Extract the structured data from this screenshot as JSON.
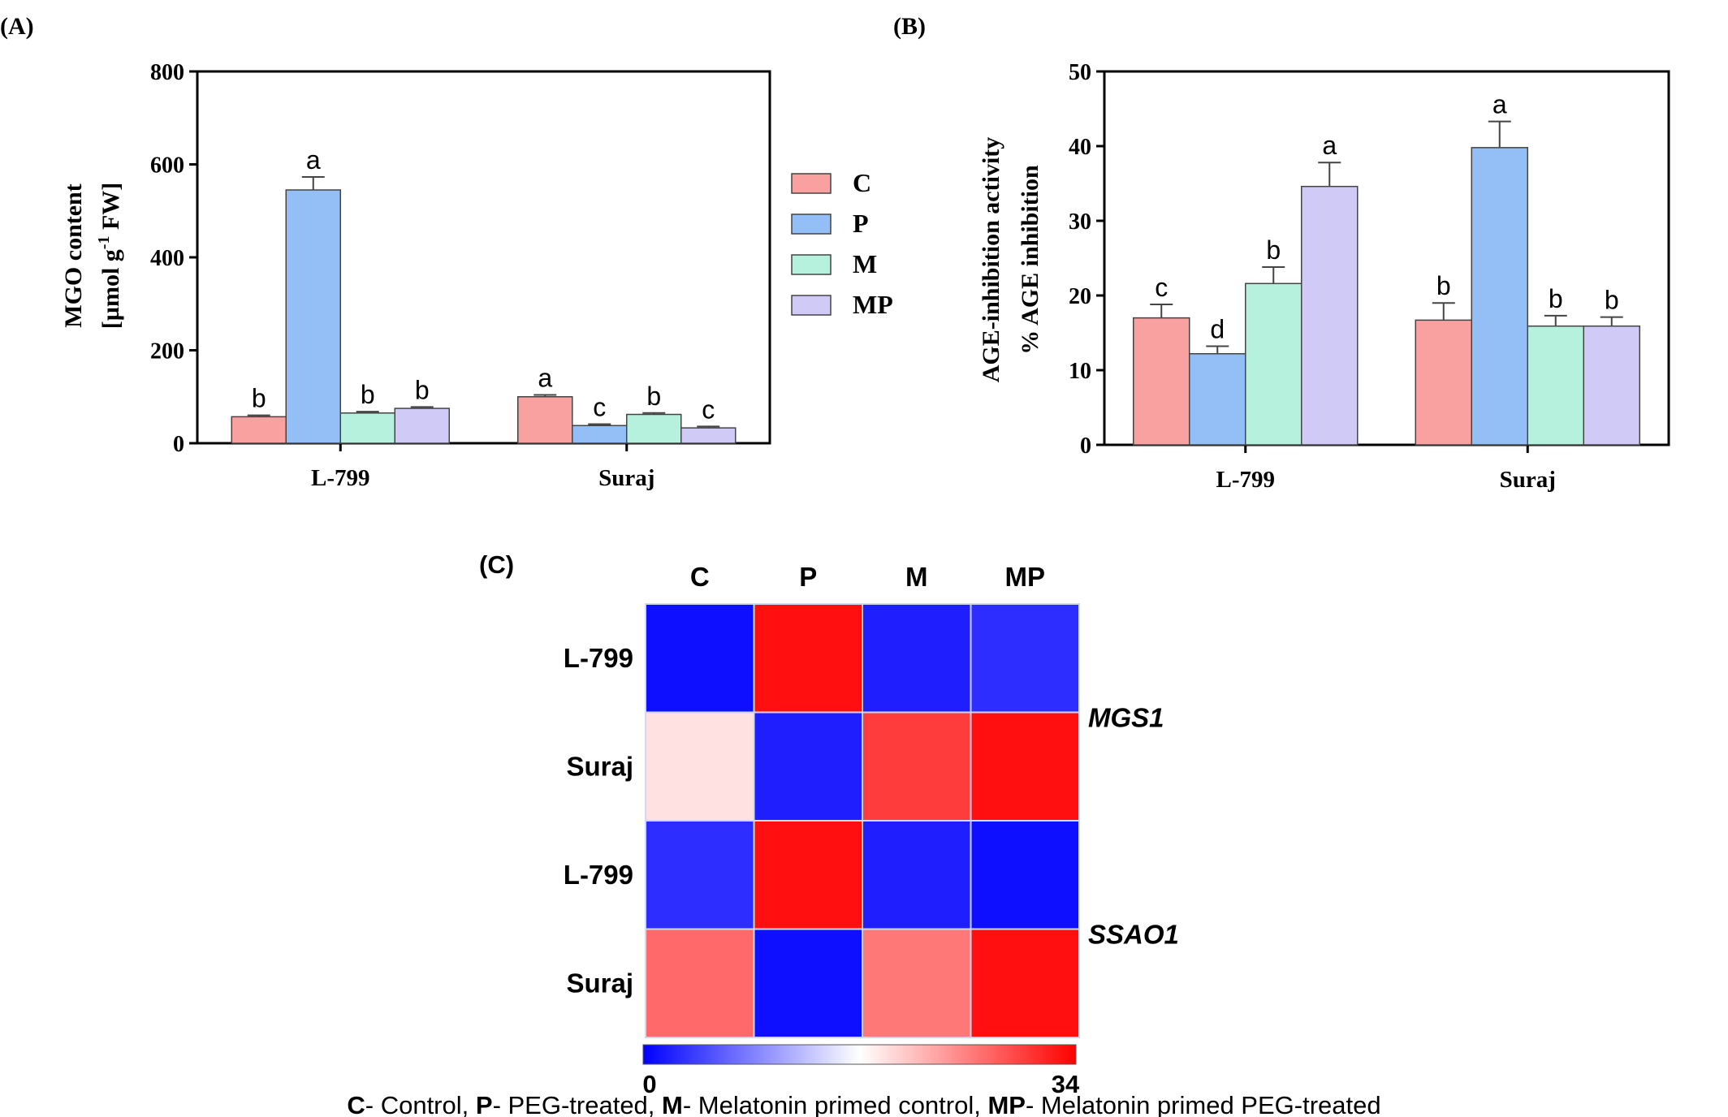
{
  "colors": {
    "C": "#f9a1a1",
    "P": "#94bef6",
    "M": "#b5f1dc",
    "MP": "#d0cbf6",
    "heat_low": "#0000ff",
    "heat_mid": "#ffffff",
    "heat_high": "#ff0000"
  },
  "legend": [
    {
      "key": "C",
      "label": "C"
    },
    {
      "key": "P",
      "label": "P"
    },
    {
      "key": "M",
      "label": "M"
    },
    {
      "key": "MP",
      "label": "MP"
    }
  ],
  "chart_data": [
    {
      "panel": "(A)",
      "type": "bar",
      "title": "",
      "ylabel_line1": "MGO content",
      "ylabel_line2": "[µmol g",
      "ylabel_sup": "-1",
      "ylabel_line2_end": " FW]",
      "ylim": [
        0,
        800
      ],
      "yticks": [
        "0",
        "200",
        "400",
        "600",
        "800"
      ],
      "yticks_values": [
        0,
        200,
        400,
        600,
        800
      ],
      "categories": [
        "L-799",
        "Suraj"
      ],
      "series": [
        {
          "name": "C",
          "values": [
            57,
            100
          ],
          "errors": [
            3,
            4
          ],
          "letters": [
            "b",
            "a"
          ]
        },
        {
          "name": "P",
          "values": [
            545,
            38
          ],
          "errors": [
            28,
            3
          ],
          "letters": [
            "a",
            "c"
          ]
        },
        {
          "name": "M",
          "values": [
            65,
            62
          ],
          "errors": [
            3,
            3
          ],
          "letters": [
            "b",
            "b"
          ]
        },
        {
          "name": "MP",
          "values": [
            75,
            33
          ],
          "errors": [
            3,
            3
          ],
          "letters": [
            "b",
            "c"
          ]
        }
      ]
    },
    {
      "panel": "(B)",
      "type": "bar",
      "title": "",
      "ylabel_line1": "AGE-inhibition activity",
      "ylabel_line2": "% AGE inhibition",
      "ylim": [
        0,
        50
      ],
      "yticks": [
        "0",
        "10",
        "20",
        "30",
        "40",
        "50"
      ],
      "yticks_values": [
        0,
        10,
        20,
        30,
        40,
        50
      ],
      "categories": [
        "L-799",
        "Suraj"
      ],
      "series": [
        {
          "name": "C",
          "values": [
            17,
            16.7
          ],
          "errors": [
            1.8,
            2.3
          ],
          "letters": [
            "c",
            "b"
          ]
        },
        {
          "name": "P",
          "values": [
            12.2,
            39.8
          ],
          "errors": [
            1.0,
            3.5
          ],
          "letters": [
            "d",
            "a"
          ]
        },
        {
          "name": "M",
          "values": [
            21.6,
            15.9
          ],
          "errors": [
            2.2,
            1.4
          ],
          "letters": [
            "b",
            "b"
          ]
        },
        {
          "name": "MP",
          "values": [
            34.6,
            15.9
          ],
          "errors": [
            3.2,
            1.2
          ],
          "letters": [
            "a",
            "b"
          ]
        }
      ]
    },
    {
      "panel": "(C)",
      "type": "heatmap",
      "title": "",
      "columns": [
        "C",
        "P",
        "M",
        "MP"
      ],
      "rows": [
        "L-799",
        "Suraj",
        "L-799",
        "Suraj"
      ],
      "genes": [
        "MGS1",
        "SSAO1"
      ],
      "scale_min": 0,
      "scale_max": 34,
      "scale_min_label": "0",
      "scale_max_label": "34",
      "values": [
        [
          1,
          33,
          2,
          3
        ],
        [
          19,
          2,
          30,
          33
        ],
        [
          3,
          33,
          2,
          1
        ],
        [
          27,
          1,
          26,
          33
        ]
      ]
    }
  ],
  "footnote": [
    {
      "abbr": "C",
      "text": "- Control, "
    },
    {
      "abbr": "P",
      "text": "- PEG-treated, "
    },
    {
      "abbr": "M",
      "text": "- Melatonin primed control, "
    },
    {
      "abbr": "MP",
      "text": "- Melatonin primed PEG-treated"
    }
  ]
}
